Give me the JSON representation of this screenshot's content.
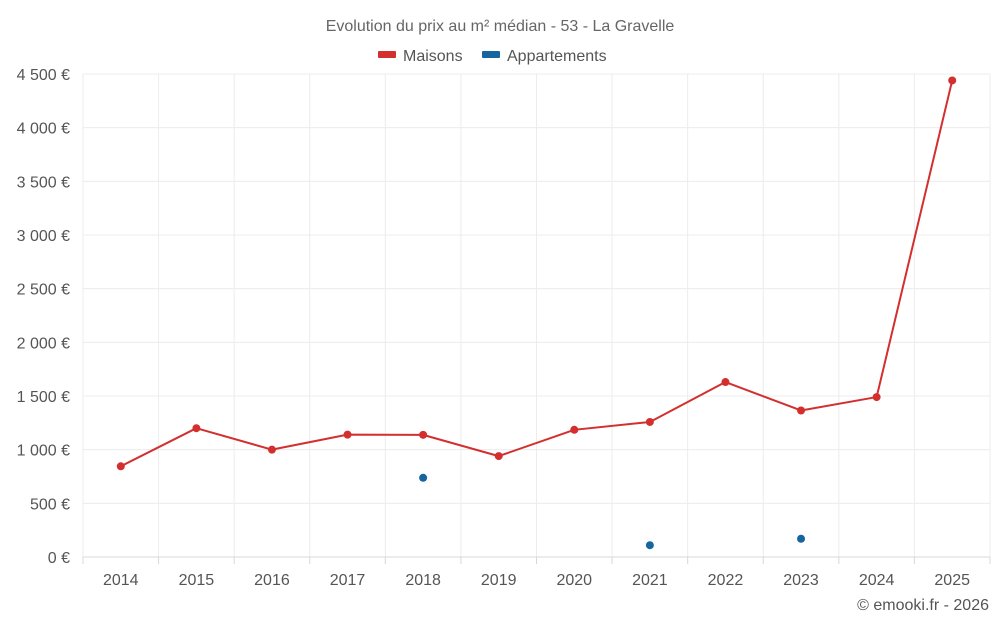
{
  "chart_data": {
    "type": "line",
    "title": "Evolution du prix au m² médian - 53 - La Gravelle",
    "xlabel": "",
    "ylabel": "",
    "categories": [
      "2014",
      "2015",
      "2016",
      "2017",
      "2018",
      "2019",
      "2020",
      "2021",
      "2022",
      "2023",
      "2024",
      "2025"
    ],
    "y_ticks": [
      0,
      500,
      1000,
      1500,
      2000,
      2500,
      3000,
      3500,
      4000,
      4500
    ],
    "y_tick_labels": [
      "0 €",
      "500 €",
      "1 000 €",
      "1 500 €",
      "2 000 €",
      "2 500 €",
      "3 000 €",
      "3 500 €",
      "4 000 €",
      "4 500 €"
    ],
    "ylim": [
      0,
      4500
    ],
    "grid": true,
    "legend_position": "top-center",
    "series": [
      {
        "name": "Maisons",
        "color": "#d32f2f",
        "show_line": true,
        "values": [
          845,
          1200,
          1000,
          1140,
          1138,
          940,
          1185,
          1258,
          1630,
          1365,
          1490,
          4440
        ]
      },
      {
        "name": "Appartements",
        "color": "#1565a0",
        "show_line": false,
        "values": [
          null,
          null,
          null,
          null,
          738,
          null,
          null,
          110,
          null,
          170,
          null,
          null
        ]
      }
    ]
  },
  "footer": {
    "copyright": "© emooki.fr - 2026"
  }
}
